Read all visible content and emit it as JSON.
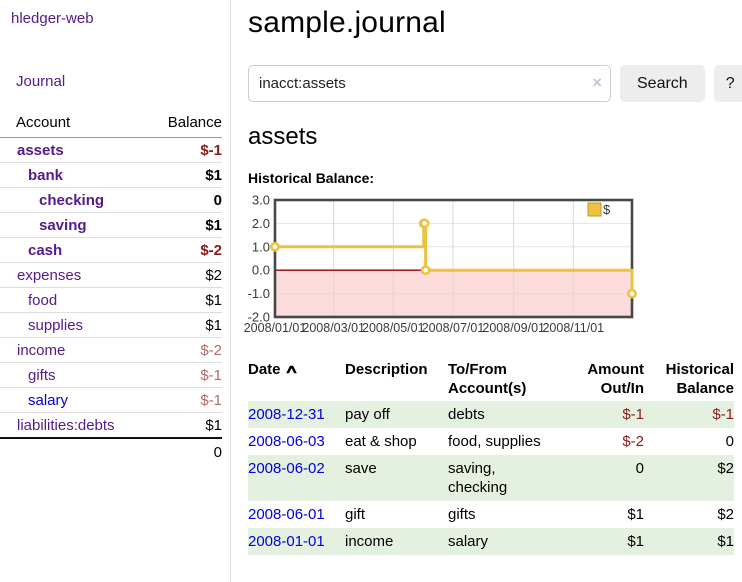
{
  "sidebar": {
    "brand": "hledger-web",
    "journal_link": "Journal",
    "accounts": {
      "col_account": "Account",
      "col_balance": "Balance",
      "rows": [
        {
          "name": "assets",
          "indent": 0,
          "emph": true,
          "name_color": "purple",
          "balance": "$-1",
          "balance_tone": "neg-strong"
        },
        {
          "name": "bank",
          "indent": 1,
          "emph": true,
          "name_color": "purple",
          "balance": "$1",
          "balance_tone": ""
        },
        {
          "name": "checking",
          "indent": 2,
          "emph": true,
          "name_color": "purple",
          "balance": "0",
          "balance_tone": ""
        },
        {
          "name": "saving",
          "indent": 2,
          "emph": true,
          "name_color": "purple",
          "balance": "$1",
          "balance_tone": ""
        },
        {
          "name": "cash",
          "indent": 1,
          "emph": true,
          "name_color": "purple",
          "balance": "$-2",
          "balance_tone": "neg-strong"
        },
        {
          "name": "expenses",
          "indent": 0,
          "emph": false,
          "name_color": "purple",
          "balance": "$2",
          "balance_tone": ""
        },
        {
          "name": "food",
          "indent": 1,
          "emph": false,
          "name_color": "purple",
          "balance": "$1",
          "balance_tone": ""
        },
        {
          "name": "supplies",
          "indent": 1,
          "emph": false,
          "name_color": "purple",
          "balance": "$1",
          "balance_tone": ""
        },
        {
          "name": "income",
          "indent": 0,
          "emph": false,
          "name_color": "purple",
          "balance": "$-2",
          "balance_tone": "neg-muted"
        },
        {
          "name": "gifts",
          "indent": 1,
          "emph": false,
          "name_color": "purple",
          "balance": "$-1",
          "balance_tone": "neg-muted"
        },
        {
          "name": "salary",
          "indent": 1,
          "emph": false,
          "name_color": "blue",
          "balance": "$-1",
          "balance_tone": "neg-muted"
        },
        {
          "name": "liabilities:debts",
          "indent": 0,
          "emph": false,
          "name_color": "purple",
          "balance": "$1",
          "balance_tone": ""
        }
      ],
      "total": "0"
    }
  },
  "main": {
    "title": "sample.journal",
    "search": {
      "value": "inacct:assets",
      "clear_icon": "×",
      "search_label": "Search",
      "help_label": "?"
    },
    "account_heading": "assets",
    "chart_label": "Historical Balance:"
  },
  "chart_data": {
    "type": "line",
    "title": "Historical Balance",
    "series": [
      {
        "name": "$",
        "color": "#edc240",
        "step": true,
        "markers": true,
        "points": [
          [
            "2008-01-01",
            1
          ],
          [
            "2008-06-01",
            2
          ],
          [
            "2008-06-02",
            2
          ],
          [
            "2008-06-03",
            0
          ],
          [
            "2008-12-31",
            -1
          ]
        ]
      }
    ],
    "xlim": [
      "2008-01-01",
      "2008-12-31"
    ],
    "ylim": [
      -2,
      3
    ],
    "yticks": [
      3.0,
      2.0,
      1.0,
      0.0,
      -1.0,
      -2.0
    ],
    "xticks": [
      "2008-01-01",
      "2008-03-01",
      "2008-05-01",
      "2008-07-01",
      "2008-09-01",
      "2008-11-01"
    ],
    "xtick_labels": [
      "2008/01/01",
      "2008/03/01",
      "2008/05/01",
      "2008/07/01",
      "2008/09/01",
      "2008/11/01"
    ],
    "legend_position": "top-right",
    "grid": true,
    "colors": {
      "negative_region": "#fbdbdb",
      "zero_line": "#990000",
      "gridline": "#d9d9d9",
      "border": "#474747",
      "marker_fill": "#ffffff",
      "legend_box_border": "#b89d2e",
      "tick_text": "#3a3a3a"
    }
  },
  "register": {
    "headers": {
      "date": "Date",
      "sort_asc_icon": "∧",
      "description": "Description",
      "accounts": "To/From Account(s)",
      "amount": "Amount Out/In",
      "balance": "Historical Balance"
    },
    "rows": [
      {
        "date": "2008-12-31",
        "description": "pay off",
        "accounts": "debts",
        "amount": "$-1",
        "amount_tone": "neg-strong",
        "balance": "$-1",
        "balance_tone": "neg-strong"
      },
      {
        "date": "2008-06-03",
        "description": "eat & shop",
        "accounts": "food, supplies",
        "amount": "$-2",
        "amount_tone": "neg-strong",
        "balance": "0",
        "balance_tone": ""
      },
      {
        "date": "2008-06-02",
        "description": "save",
        "accounts": "saving, checking",
        "amount": "0",
        "amount_tone": "",
        "balance": "$2",
        "balance_tone": ""
      },
      {
        "date": "2008-06-01",
        "description": "gift",
        "accounts": "gifts",
        "amount": "$1",
        "amount_tone": "",
        "balance": "$2",
        "balance_tone": ""
      },
      {
        "date": "2008-01-01",
        "description": "income",
        "accounts": "salary",
        "amount": "$1",
        "amount_tone": "",
        "balance": "$1",
        "balance_tone": ""
      }
    ]
  }
}
